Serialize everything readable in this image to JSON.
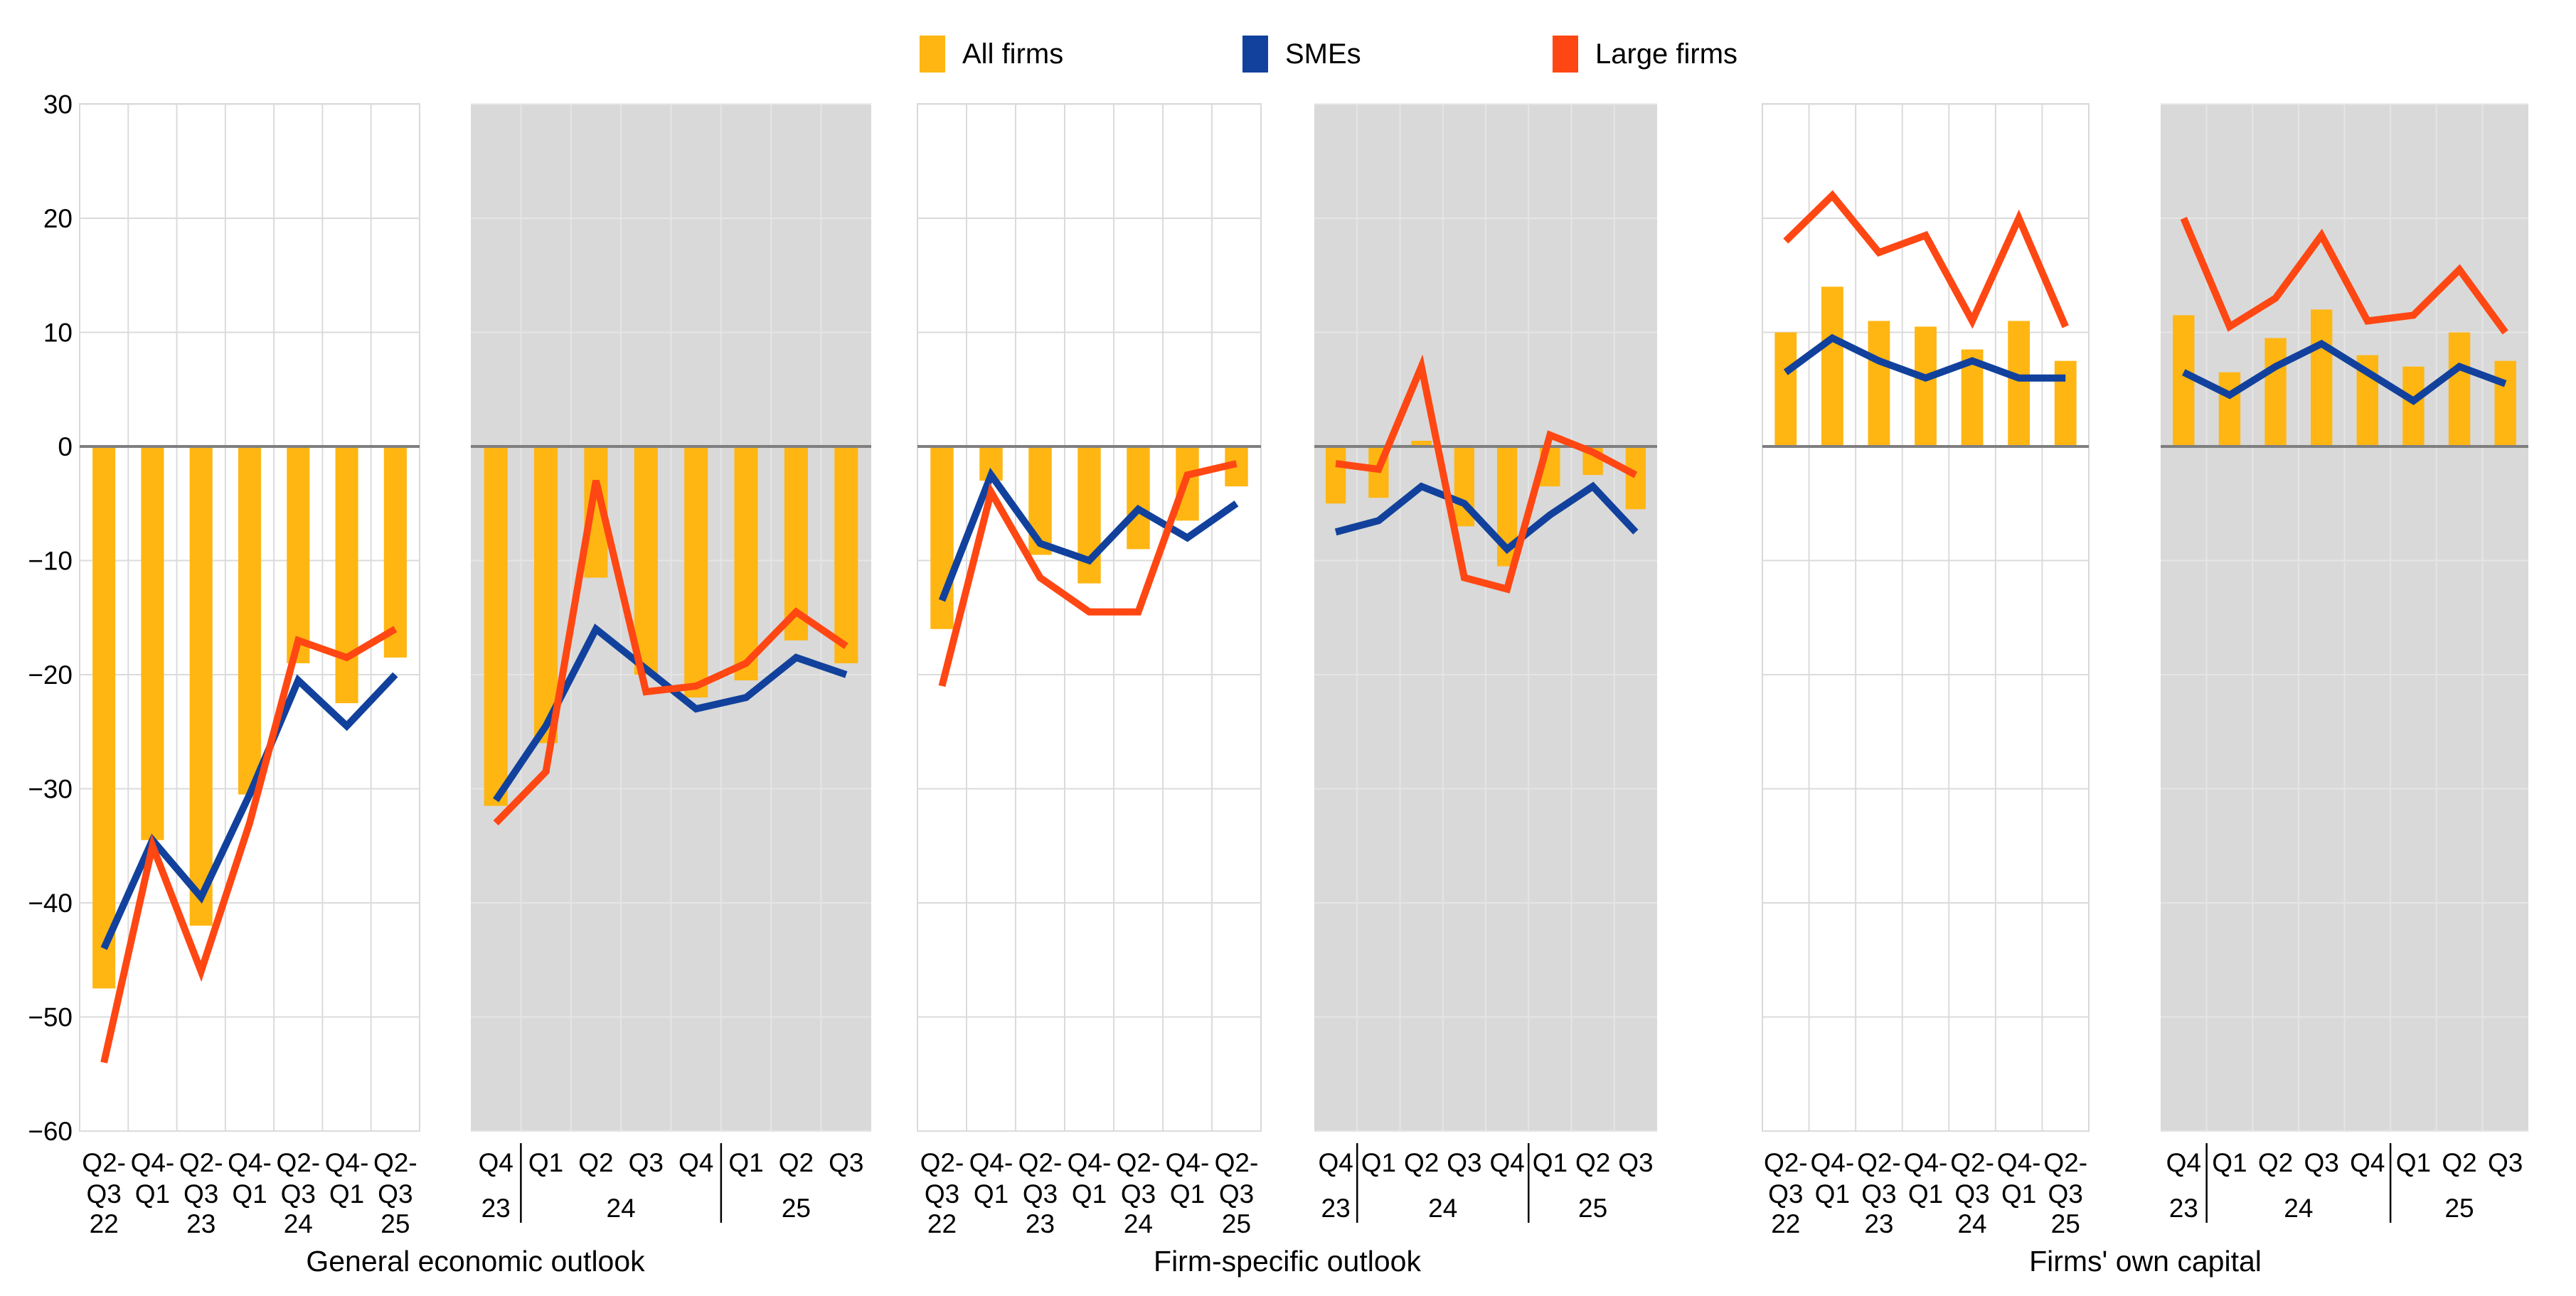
{
  "legend": {
    "items": [
      {
        "id": "all-firms",
        "label": "All firms",
        "color": "#FFB612"
      },
      {
        "id": "smes",
        "label": "SMEs",
        "color": "#11419C"
      },
      {
        "id": "large-firms",
        "label": "Large firms",
        "color": "#FF4713"
      }
    ]
  },
  "chart_data": {
    "type": "bar",
    "subtype": "bar-line-combo-small-multiples",
    "ylim": [
      -60,
      30
    ],
    "yticks": [
      30,
      20,
      10,
      0,
      -10,
      -20,
      -30,
      -40,
      -50,
      -60
    ],
    "grid": true,
    "legend_position": "top-center",
    "bar_series_name": "All firms",
    "line_series_names": [
      "SMEs",
      "Large firms"
    ],
    "colors": {
      "all_firms": "#FFB612",
      "smes": "#11419C",
      "large_firms": "#FF4713",
      "gray_panel_bg": "#D9D9D9",
      "white_panel_grid": "#DBDBDB",
      "gray_panel_grid": "#E5E5E5",
      "zero_line": "#7F7F7F",
      "text": "#000000"
    },
    "groups": [
      {
        "title": "General economic outlook",
        "panels": [
          {
            "freq": "semiannual",
            "background": "white",
            "tick_top": [
              "Q2-",
              "Q4-",
              "Q2-",
              "Q4-",
              "Q2-",
              "Q4-",
              "Q2-"
            ],
            "tick_bottom": [
              "Q3",
              "Q1",
              "Q3",
              "Q1",
              "Q3",
              "Q1",
              "Q3"
            ],
            "years": [
              {
                "label": "22",
                "from": 0,
                "to": 0
              },
              {
                "label": "23",
                "from": 2,
                "to": 2
              },
              {
                "label": "24",
                "from": 4,
                "to": 4
              },
              {
                "label": "25",
                "from": 6,
                "to": 6
              }
            ],
            "separators": [],
            "series": {
              "all_firms": [
                -47.5,
                -34.5,
                -42,
                -30.5,
                -19,
                -22.5,
                -18.5
              ],
              "smes": [
                -44,
                -34.5,
                -39.5,
                -30.5,
                -20.5,
                -24.5,
                -20
              ],
              "large_firms": [
                -54,
                -35,
                -46,
                -33,
                -17,
                -18.5,
                -16
              ]
            }
          },
          {
            "freq": "quarterly",
            "background": "gray",
            "tick_top": [
              "Q4",
              "Q1",
              "Q2",
              "Q3",
              "Q4",
              "Q1",
              "Q2",
              "Q3"
            ],
            "tick_bottom": [
              "",
              "",
              "",
              "",
              "",
              "",
              "",
              ""
            ],
            "years": [
              {
                "label": "23",
                "from": 0,
                "to": 0
              },
              {
                "label": "24",
                "from": 1,
                "to": 4
              },
              {
                "label": "25",
                "from": 5,
                "to": 7
              }
            ],
            "separators": [
              1,
              5
            ],
            "series": {
              "all_firms": [
                -31.5,
                -26,
                -11.5,
                -20,
                -22,
                -20.5,
                -17,
                -19
              ],
              "smes": [
                -31,
                -24.5,
                -16,
                -19.5,
                -23,
                -22,
                -18.5,
                -20
              ],
              "large_firms": [
                -33,
                -28.5,
                -3,
                -21.5,
                -21,
                -19,
                -14.5,
                -17.5
              ]
            }
          }
        ]
      },
      {
        "title": "Firm-specific outlook",
        "panels": [
          {
            "freq": "semiannual",
            "background": "white",
            "tick_top": [
              "Q2-",
              "Q4-",
              "Q2-",
              "Q4-",
              "Q2-",
              "Q4-",
              "Q2-"
            ],
            "tick_bottom": [
              "Q3",
              "Q1",
              "Q3",
              "Q1",
              "Q3",
              "Q1",
              "Q3"
            ],
            "years": [
              {
                "label": "22",
                "from": 0,
                "to": 0
              },
              {
                "label": "23",
                "from": 2,
                "to": 2
              },
              {
                "label": "24",
                "from": 4,
                "to": 4
              },
              {
                "label": "25",
                "from": 6,
                "to": 6
              }
            ],
            "separators": [],
            "series": {
              "all_firms": [
                -16,
                -3,
                -9.5,
                -12,
                -9,
                -6.5,
                -3.5
              ],
              "smes": [
                -13.5,
                -2.5,
                -8.5,
                -10,
                -5.5,
                -8,
                -5
              ],
              "large_firms": [
                -21,
                -4,
                -11.5,
                -14.5,
                -14.5,
                -2.5,
                -1.5
              ]
            }
          },
          {
            "freq": "quarterly",
            "background": "gray",
            "tick_top": [
              "Q4",
              "Q1",
              "Q2",
              "Q3",
              "Q4",
              "Q1",
              "Q2",
              "Q3"
            ],
            "tick_bottom": [
              "",
              "",
              "",
              "",
              "",
              "",
              "",
              ""
            ],
            "years": [
              {
                "label": "23",
                "from": 0,
                "to": 0
              },
              {
                "label": "24",
                "from": 1,
                "to": 4
              },
              {
                "label": "25",
                "from": 5,
                "to": 7
              }
            ],
            "separators": [
              1,
              5
            ],
            "series": {
              "all_firms": [
                -5,
                -4.5,
                0.5,
                -7,
                -10.5,
                -3.5,
                -2.5,
                -5.5
              ],
              "smes": [
                -7.5,
                -6.5,
                -3.5,
                -5,
                -9,
                -6,
                -3.5,
                -7.5
              ],
              "large_firms": [
                -1.5,
                -2,
                7,
                -11.5,
                -12.5,
                1,
                -0.5,
                -2.5
              ]
            }
          }
        ]
      },
      {
        "title": "Firms' own capital",
        "panels": [
          {
            "freq": "semiannual",
            "background": "white",
            "tick_top": [
              "Q2-",
              "Q4-",
              "Q2-",
              "Q4-",
              "Q2-",
              "Q4-",
              "Q2-"
            ],
            "tick_bottom": [
              "Q3",
              "Q1",
              "Q3",
              "Q1",
              "Q3",
              "Q1",
              "Q3"
            ],
            "years": [
              {
                "label": "22",
                "from": 0,
                "to": 0
              },
              {
                "label": "23",
                "from": 2,
                "to": 2
              },
              {
                "label": "24",
                "from": 4,
                "to": 4
              },
              {
                "label": "25",
                "from": 6,
                "to": 6
              }
            ],
            "separators": [],
            "series": {
              "all_firms": [
                10,
                14,
                11,
                10.5,
                8.5,
                11,
                7.5
              ],
              "smes": [
                6.5,
                9.5,
                7.5,
                6,
                7.5,
                6,
                6
              ],
              "large_firms": [
                18,
                22,
                17,
                18.5,
                11,
                20,
                10.5
              ]
            }
          },
          {
            "freq": "quarterly",
            "background": "gray",
            "tick_top": [
              "Q4",
              "Q1",
              "Q2",
              "Q3",
              "Q4",
              "Q1",
              "Q2",
              "Q3"
            ],
            "tick_bottom": [
              "",
              "",
              "",
              "",
              "",
              "",
              "",
              ""
            ],
            "years": [
              {
                "label": "23",
                "from": 0,
                "to": 0
              },
              {
                "label": "24",
                "from": 1,
                "to": 4
              },
              {
                "label": "25",
                "from": 5,
                "to": 7
              }
            ],
            "separators": [
              1,
              5
            ],
            "series": {
              "all_firms": [
                11.5,
                6.5,
                9.5,
                12,
                8,
                7,
                10,
                7.5
              ],
              "smes": [
                6.5,
                4.5,
                7,
                9,
                6.5,
                4,
                7,
                5.5
              ],
              "large_firms": [
                20,
                10.5,
                13,
                18.5,
                11,
                11.5,
                15.5,
                10
              ]
            }
          }
        ]
      }
    ]
  }
}
